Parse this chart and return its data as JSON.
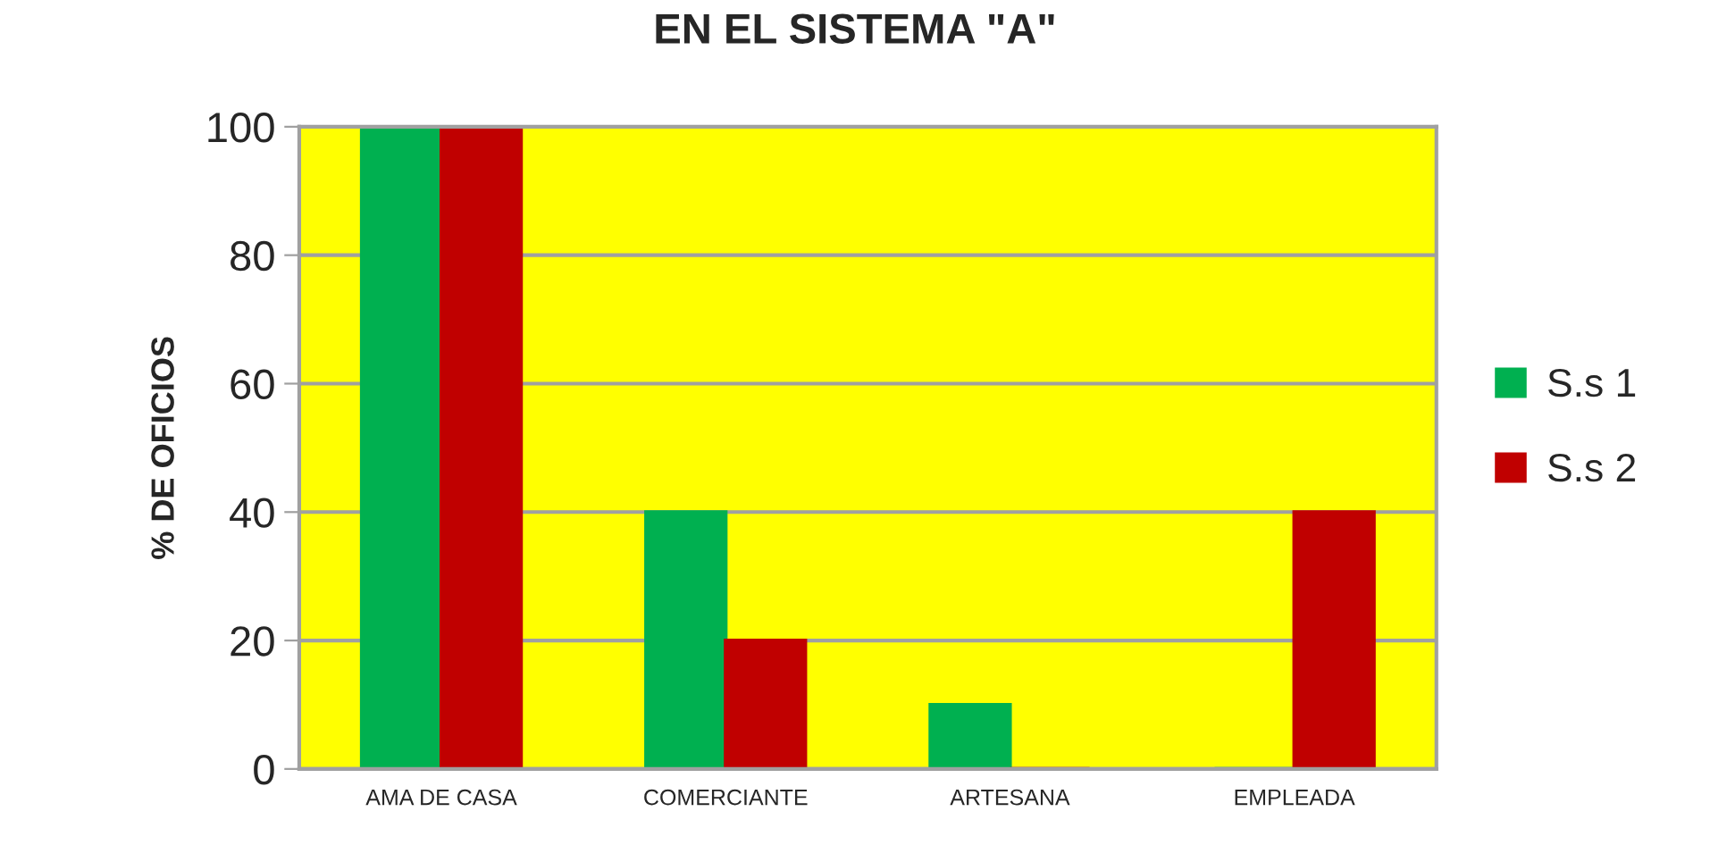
{
  "chart_data": {
    "type": "bar",
    "title": "EN EL SISTEMA \"A\"",
    "ylabel": "% DE OFICIOS",
    "categories": [
      "AMA DE CASA",
      "COMERCIANTE",
      "ARTESANA",
      "EMPLEADA"
    ],
    "series": [
      {
        "name": "S.s 1",
        "color": "#00b050",
        "values": [
          100,
          40,
          10,
          0
        ]
      },
      {
        "name": "S.s 2",
        "color": "#c00000",
        "values": [
          100,
          20,
          0,
          40
        ]
      }
    ],
    "ylim": [
      0,
      100
    ],
    "yticks": [
      0,
      20,
      40,
      60,
      80,
      100
    ],
    "grid": "y",
    "legend": "right"
  }
}
